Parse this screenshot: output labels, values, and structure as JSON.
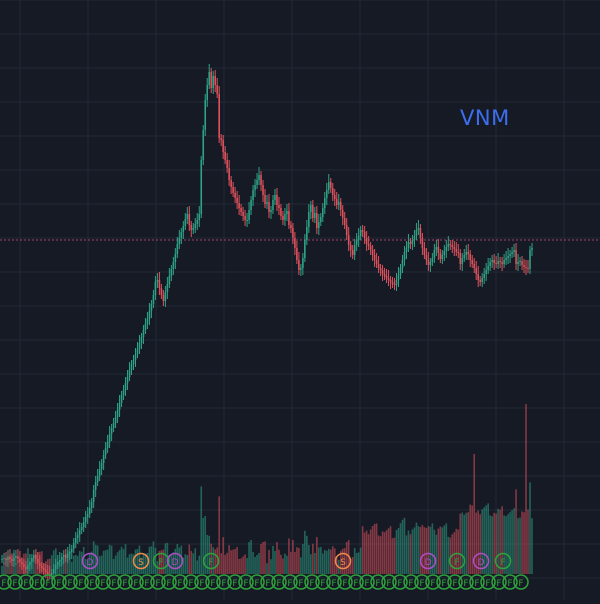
{
  "chart_data": {
    "type": "candlestick",
    "symbol": "VNM",
    "x": [
      0,
      1,
      2,
      3,
      4,
      5,
      6,
      7,
      8,
      9,
      10,
      11,
      12,
      13,
      14,
      15,
      16,
      17,
      18,
      19,
      20,
      21,
      22,
      23,
      24,
      25,
      26,
      27,
      28,
      29,
      30,
      31,
      32,
      33,
      34,
      35,
      36,
      37,
      38,
      39,
      40,
      41,
      42,
      43,
      44,
      45,
      46,
      47,
      48,
      49,
      50,
      51,
      52,
      53,
      54,
      55,
      56,
      57,
      58,
      59,
      60,
      61,
      62,
      63,
      64,
      65,
      66,
      67,
      68,
      69,
      70,
      71,
      72,
      73,
      74,
      75,
      76,
      77,
      78,
      79,
      80,
      81,
      82,
      83,
      84,
      85,
      86,
      87,
      88,
      89,
      90,
      91,
      92,
      93,
      94,
      95,
      96,
      97,
      98,
      99,
      100,
      101,
      102,
      103,
      104,
      105,
      106,
      107,
      108,
      109,
      110,
      111,
      112,
      113,
      114,
      115,
      116,
      117,
      118,
      119,
      120,
      121,
      122,
      123,
      124,
      125,
      126,
      127,
      128,
      129,
      130,
      131,
      132,
      133,
      134,
      135,
      136,
      137,
      138,
      139,
      140,
      141,
      142,
      143,
      144,
      145,
      146,
      147,
      148,
      149,
      150,
      151,
      152,
      153,
      154,
      155,
      156,
      157,
      158,
      159,
      160,
      161,
      162,
      163,
      164,
      165,
      166,
      167,
      168,
      169,
      170,
      171,
      172,
      173,
      174,
      175,
      176,
      177,
      178,
      179,
      180,
      181,
      182,
      183,
      184,
      185,
      186,
      187,
      188,
      189,
      190,
      191,
      192,
      193,
      194,
      195,
      196,
      197,
      198,
      199,
      200,
      201,
      202,
      203,
      204,
      205,
      206,
      207,
      208,
      209,
      210,
      211,
      212,
      213,
      214,
      215,
      216,
      217,
      218,
      219,
      220,
      221,
      222,
      223,
      224,
      225,
      226,
      227,
      228,
      229,
      230,
      231,
      232,
      233,
      234,
      235,
      236,
      237,
      238,
      239,
      240,
      241,
      242,
      243,
      244,
      245,
      246,
      247,
      248,
      249,
      250,
      251,
      252,
      253,
      254,
      255,
      256,
      257,
      258,
      259,
      260,
      261,
      262,
      263,
      264,
      265,
      266
    ],
    "close": [
      41,
      42,
      40,
      43,
      41,
      39,
      42,
      44,
      41,
      38,
      36,
      33,
      31,
      35,
      38,
      42,
      45,
      41,
      37,
      34,
      32,
      30,
      28,
      26,
      25,
      27,
      31,
      35,
      38,
      40,
      43,
      45,
      42,
      46,
      48,
      51,
      57,
      62,
      65,
      70,
      73,
      78,
      83,
      86,
      92,
      98,
      110,
      118,
      124,
      131,
      137,
      145,
      152,
      158,
      166,
      172,
      177,
      183,
      190,
      197,
      205,
      210,
      217,
      223,
      230,
      236,
      240,
      246,
      251,
      257,
      263,
      270,
      276,
      281,
      289,
      296,
      305,
      318,
      320,
      312,
      305,
      299,
      308,
      316,
      324,
      331,
      338,
      346,
      356,
      362,
      368,
      374,
      381,
      386,
      375,
      370,
      372,
      376,
      380,
      386,
      440,
      470,
      500,
      515,
      528,
      512,
      524,
      515,
      506,
      462,
      460,
      448,
      440,
      432,
      420,
      413,
      407,
      402,
      397,
      392,
      388,
      384,
      380,
      380,
      390,
      400,
      410,
      415,
      420,
      425,
      415,
      405,
      396,
      398,
      388,
      390,
      400,
      405,
      395,
      392,
      384,
      380,
      386,
      389,
      375,
      372,
      362,
      352,
      340,
      330,
      332,
      342,
      360,
      373,
      388,
      395,
      382,
      387,
      372,
      378,
      383,
      392,
      402,
      410,
      418,
      412,
      405,
      401,
      395,
      398,
      390,
      382,
      375,
      365,
      355,
      350,
      345,
      355,
      360,
      364,
      370,
      368,
      362,
      356,
      354,
      350,
      345,
      340,
      336,
      332,
      330,
      326,
      324,
      322,
      320,
      318,
      316,
      315,
      320,
      325,
      332,
      340,
      348,
      352,
      358,
      356,
      360,
      364,
      370,
      372,
      362,
      352,
      345,
      340,
      335,
      338,
      342,
      350,
      353,
      347,
      341,
      345,
      349,
      353,
      356,
      355,
      353,
      351,
      348,
      347,
      336,
      342,
      345,
      348,
      346,
      340,
      336,
      332,
      326,
      320,
      318,
      322,
      326,
      330,
      334,
      338,
      340,
      337,
      336,
      339,
      338,
      336,
      340,
      342,
      344,
      346,
      348,
      350,
      336,
      338,
      339,
      335,
      333,
      332,
      331,
      350,
      352
    ],
    "volume": [],
    "ylim": [
      0,
      600
    ],
    "reference_line": 360,
    "grid": true,
    "events": [
      "D",
      "S",
      "F",
      "D",
      "F",
      "S",
      "D",
      "F",
      "D",
      "F",
      "F",
      "F",
      "F",
      "F",
      "F",
      "F",
      "F",
      "F",
      "F",
      "F",
      "F",
      "F",
      "F",
      "F",
      "F",
      "F",
      "F",
      "F",
      "F",
      "F",
      "F",
      "F",
      "F",
      "F",
      "F",
      "F",
      "F",
      "F",
      "F",
      "F"
    ]
  }
}
